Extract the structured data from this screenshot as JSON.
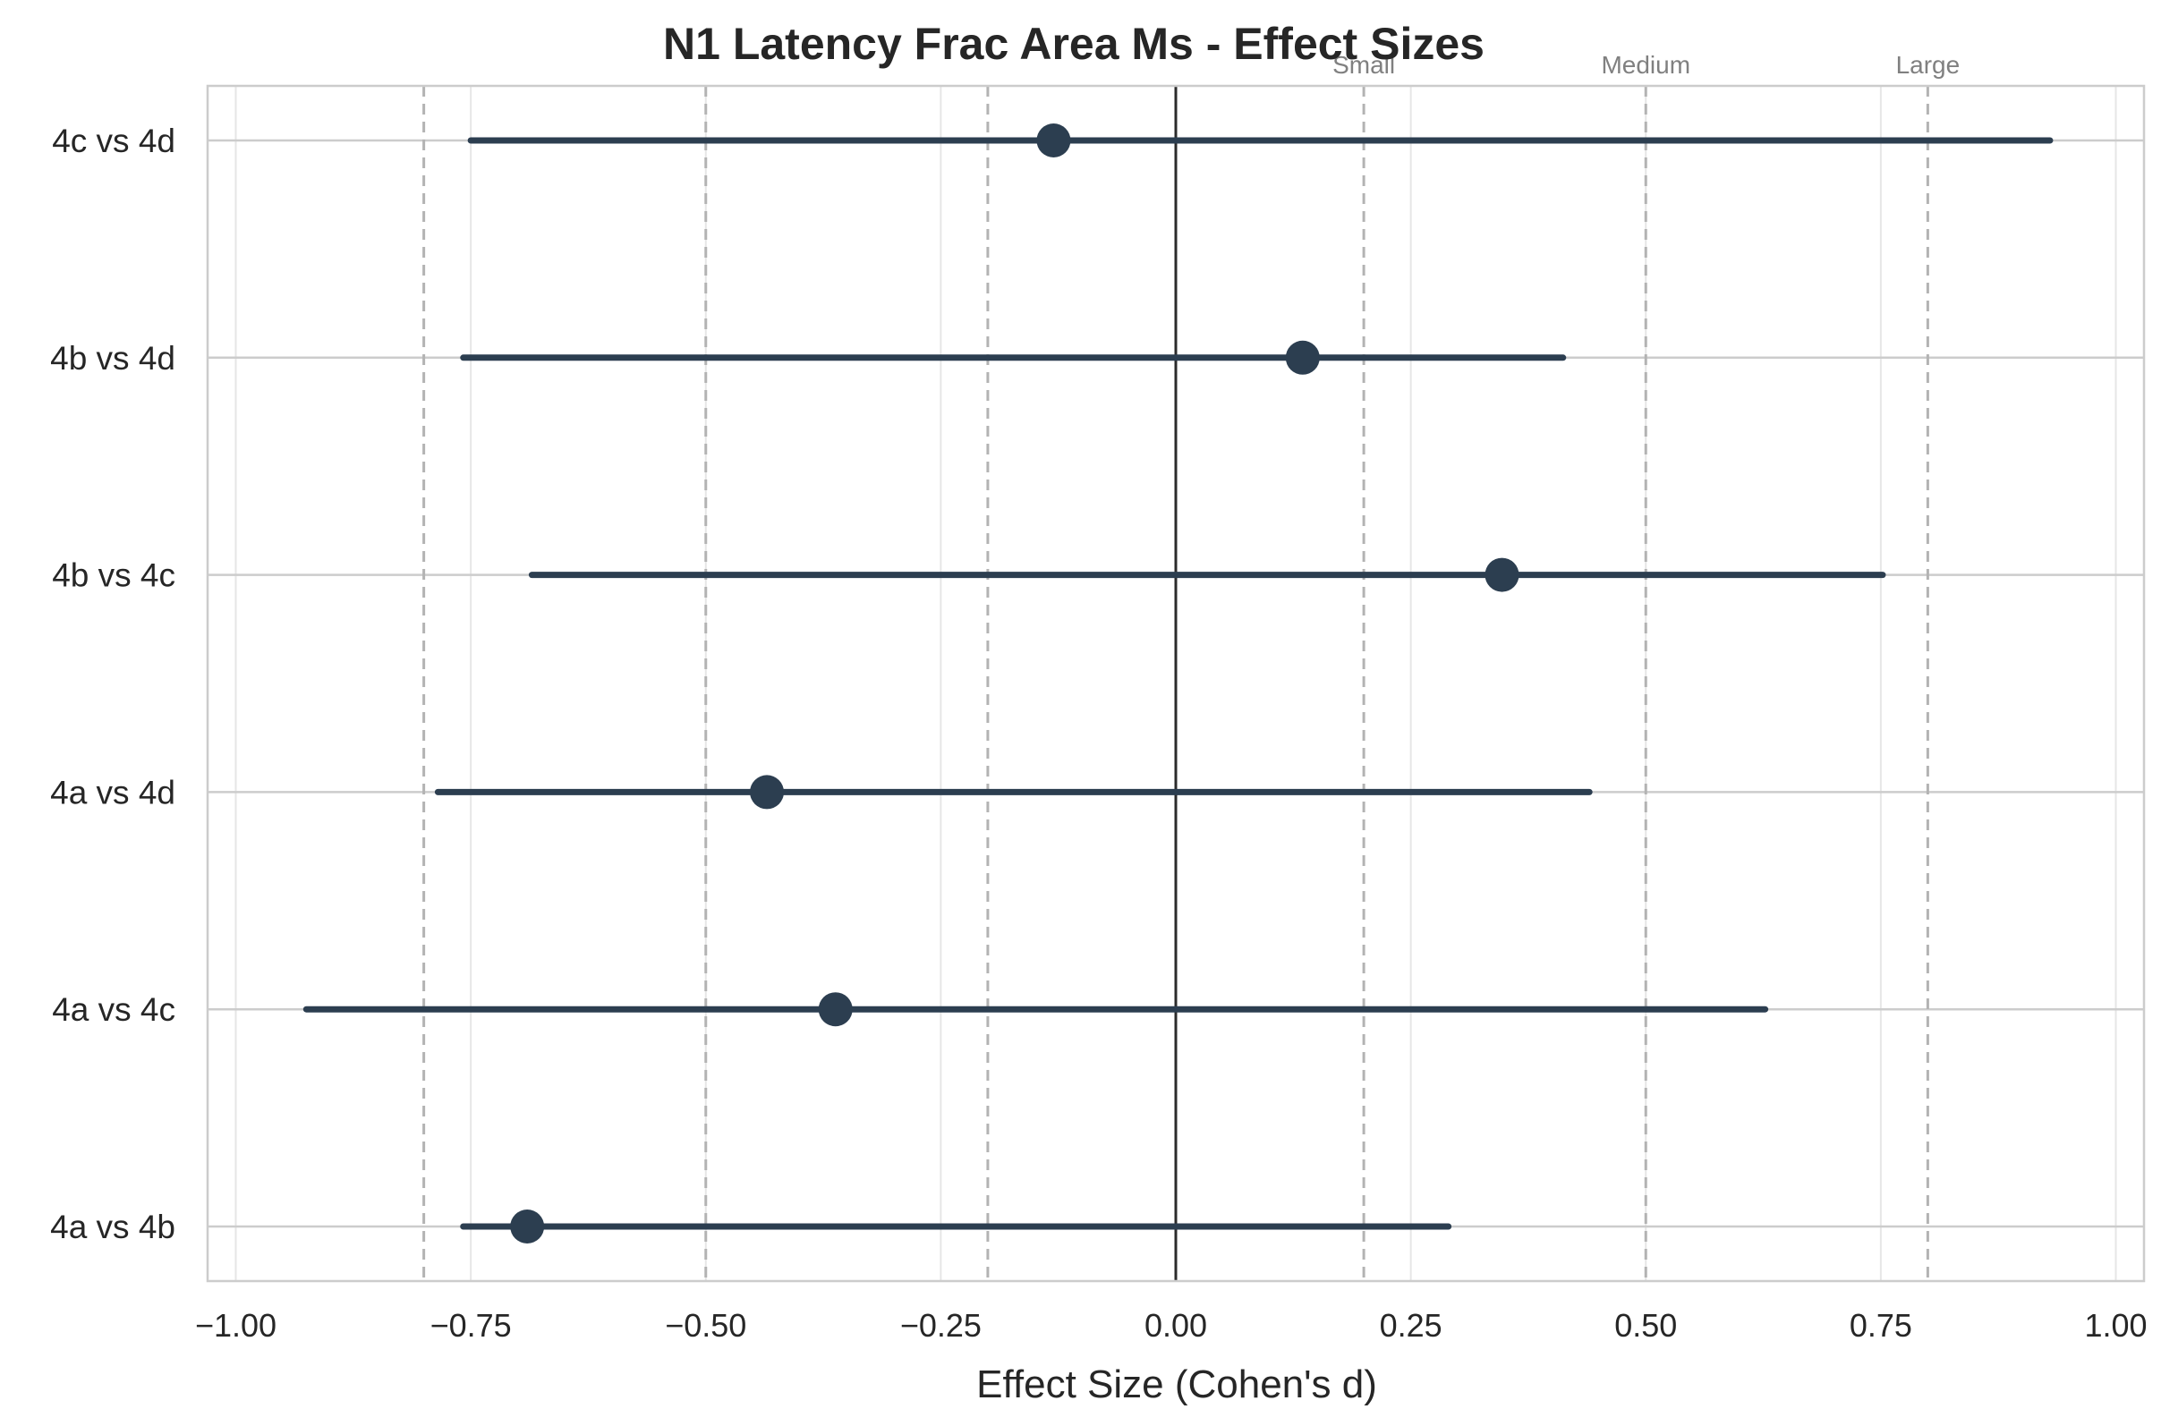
{
  "chart_data": {
    "type": "forest",
    "title": "N1 Latency Frac Area Ms - Effect Sizes",
    "xlabel": "Effect Size (Cohen's d)",
    "ylabel": "",
    "xlim": [
      -1.03,
      1.03
    ],
    "xticks": [
      -1.0,
      -0.75,
      -0.5,
      -0.25,
      0.0,
      0.25,
      0.5,
      0.75,
      1.0
    ],
    "xtick_labels": [
      "−1.00",
      "−0.75",
      "−0.50",
      "−0.25",
      "0.00",
      "0.25",
      "0.50",
      "0.75",
      "1.00"
    ],
    "grid": true,
    "zero_line": 0.0,
    "reference_lines": [
      {
        "x": -0.8,
        "label": ""
      },
      {
        "x": -0.5,
        "label": ""
      },
      {
        "x": -0.2,
        "label": ""
      },
      {
        "x": 0.2,
        "label": "Small"
      },
      {
        "x": 0.5,
        "label": "Medium"
      },
      {
        "x": 0.8,
        "label": "Large"
      }
    ],
    "marker_color": "#2c3e50",
    "comparisons": [
      {
        "label": "4c vs 4d",
        "d": -0.13,
        "ci_low": -0.75,
        "ci_high": 0.93
      },
      {
        "label": "4b vs 4d",
        "d": 0.135,
        "ci_low": -0.758,
        "ci_high": 0.412
      },
      {
        "label": "4b vs 4c",
        "d": 0.347,
        "ci_low": -0.685,
        "ci_high": 0.752
      },
      {
        "label": "4a vs 4d",
        "d": -0.435,
        "ci_low": -0.785,
        "ci_high": 0.44
      },
      {
        "label": "4a vs 4c",
        "d": -0.362,
        "ci_low": -0.925,
        "ci_high": 0.627
      },
      {
        "label": "4a vs 4b",
        "d": -0.69,
        "ci_low": -0.758,
        "ci_high": 0.29
      }
    ]
  }
}
